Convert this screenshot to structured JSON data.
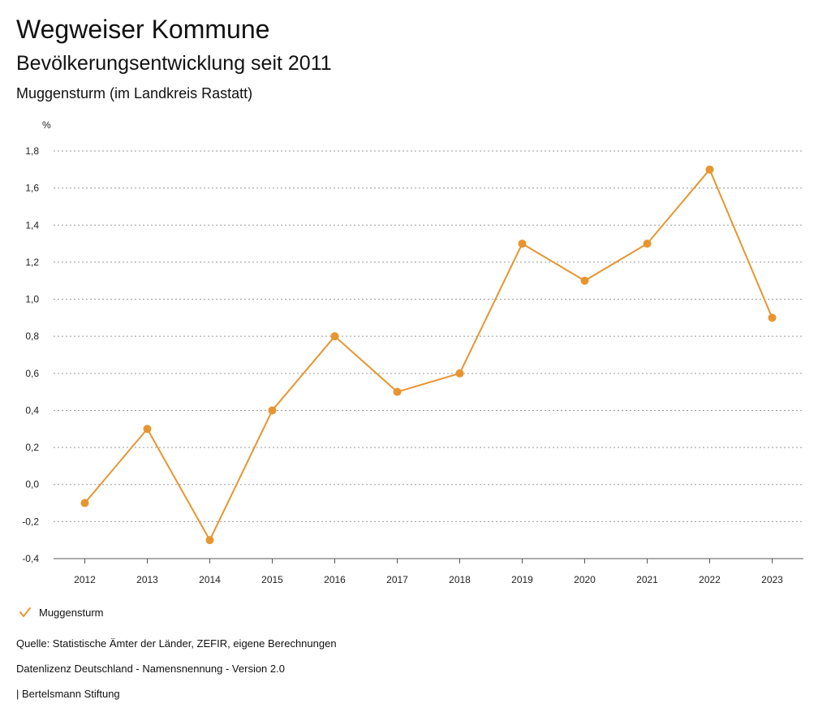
{
  "header": {
    "title": "Wegweiser Kommune",
    "subtitle": "Bevölkerungsentwicklung seit 2011",
    "region": "Muggensturm (im Landkreis Rastatt)"
  },
  "legend": {
    "items": [
      {
        "label": "Muggensturm",
        "icon": "check-icon",
        "color": "#E8952F"
      }
    ]
  },
  "footer": {
    "source": "Quelle: Statistische Ämter der Länder, ZEFIR, eigene Berechnungen",
    "license": "Datenlizenz Deutschland - Namensnennung - Version 2.0",
    "publisher": "| Bertelsmann Stiftung"
  },
  "chart_data": {
    "type": "line",
    "title": "Bevölkerungsentwicklung seit 2011",
    "xlabel": "",
    "ylabel": "%",
    "categories": [
      "2012",
      "2013",
      "2014",
      "2015",
      "2016",
      "2017",
      "2018",
      "2019",
      "2020",
      "2021",
      "2022",
      "2023"
    ],
    "series": [
      {
        "name": "Muggensturm",
        "color": "#E8952F",
        "values": [
          -0.1,
          0.3,
          -0.3,
          0.4,
          0.8,
          0.5,
          0.6,
          1.3,
          1.1,
          1.3,
          1.7,
          0.9
        ]
      }
    ],
    "ylim": [
      -0.4,
      1.8
    ],
    "yticks": [
      -0.4,
      -0.2,
      0.0,
      0.2,
      0.4,
      0.6,
      0.8,
      1.0,
      1.2,
      1.4,
      1.6,
      1.8
    ],
    "ytick_labels": [
      "-0,4",
      "-0,2",
      "0,0",
      "0,2",
      "0,4",
      "0,6",
      "0,8",
      "1,0",
      "1,2",
      "1,4",
      "1,6",
      "1,8"
    ],
    "grid": true,
    "legend_position": "bottom-left"
  }
}
